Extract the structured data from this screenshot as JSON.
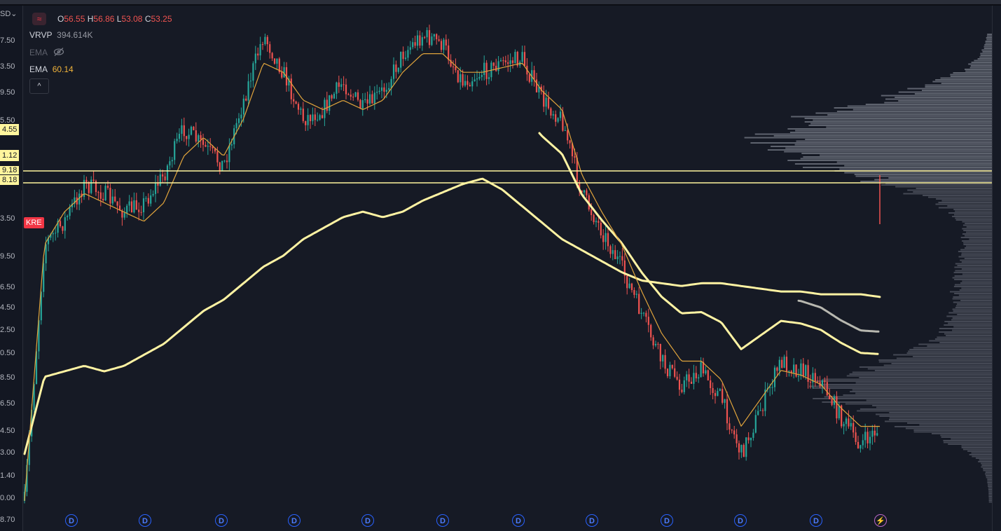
{
  "legend": {
    "open_key": "O",
    "open": "56.55",
    "high_key": "H",
    "high": "56.86",
    "low_key": "L",
    "low": "53.08",
    "close_key": "C",
    "close": "53.25",
    "vrvp_label": "VRVP",
    "vrvp_value": "394.614K",
    "ema_hidden_label": "EMA",
    "ema_label": "EMA",
    "ema_value": "60.14",
    "collapse_glyph": "^"
  },
  "axis": {
    "currency": "SD",
    "ticks": [
      "7.50",
      "3.50",
      "9.50",
      "5.50",
      "3.50",
      "9.50",
      "6.50",
      "4.50",
      "2.50",
      "0.50",
      "8.50",
      "6.50",
      "4.50",
      "3.00",
      "1.40",
      "0.00",
      "8.70"
    ]
  },
  "highlighted_levels": [
    "4.55",
    "1.12",
    "9.18",
    "8.18"
  ],
  "symbol_label": "KRE",
  "markers": {
    "dividend_glyph": "D",
    "dividend_count": 11,
    "bolt_glyph": "⚡"
  },
  "colors": {
    "background": "#161a25",
    "bull": "#26a69a",
    "bear": "#ef5350",
    "ema_fast": "#e0a43c",
    "ema_slow": "#fff3a3",
    "highlight": "#fff59d",
    "volume_profile": "#9aa0ab"
  },
  "chart_data": {
    "type": "line",
    "series": [
      {
        "values": [
          0.0,
          0.55,
          0.6,
          0.68,
          0.66,
          0.62,
          0.64,
          0.7,
          0.8,
          0.76,
          0.72,
          0.86,
          1.0,
          0.92,
          0.82,
          0.84,
          0.9,
          0.84,
          0.88,
          0.96,
          1.0,
          0.98,
          0.9,
          0.92,
          0.94,
          0.95,
          0.86,
          0.82,
          0.66,
          0.58,
          0.5,
          0.4,
          0.3,
          0.25,
          0.28,
          0.22,
          0.1,
          0.2,
          0.3,
          0.28,
          0.26,
          0.18,
          0.12,
          0.16
        ]
      },
      {
        "values": [
          0.0,
          0.55,
          0.62,
          0.66,
          0.64,
          0.62,
          0.6,
          0.64,
          0.74,
          0.78,
          0.74,
          0.82,
          0.94,
          0.92,
          0.86,
          0.84,
          0.86,
          0.84,
          0.86,
          0.92,
          0.96,
          0.96,
          0.92,
          0.92,
          0.93,
          0.94,
          0.88,
          0.84,
          0.7,
          0.62,
          0.55,
          0.45,
          0.36,
          0.3,
          0.3,
          0.26,
          0.16,
          0.22,
          0.28,
          0.27,
          0.25,
          0.2,
          0.16,
          0.16
        ]
      },
      {
        "values": [
          0.0,
          0.28,
          0.3,
          0.32,
          0.3,
          0.32,
          0.36,
          0.4,
          0.46,
          0.52,
          0.56,
          0.62,
          0.68,
          0.72,
          0.78,
          0.82,
          0.86,
          0.88,
          0.86,
          0.88,
          0.92,
          0.95,
          0.98,
          1.0,
          0.96,
          0.9,
          0.84,
          0.78,
          0.74,
          0.7,
          0.66,
          0.63,
          0.62,
          0.61,
          0.62,
          0.62,
          0.61,
          0.6,
          0.59,
          0.59,
          0.58,
          0.58,
          0.58,
          0.57
        ]
      }
    ]
  }
}
